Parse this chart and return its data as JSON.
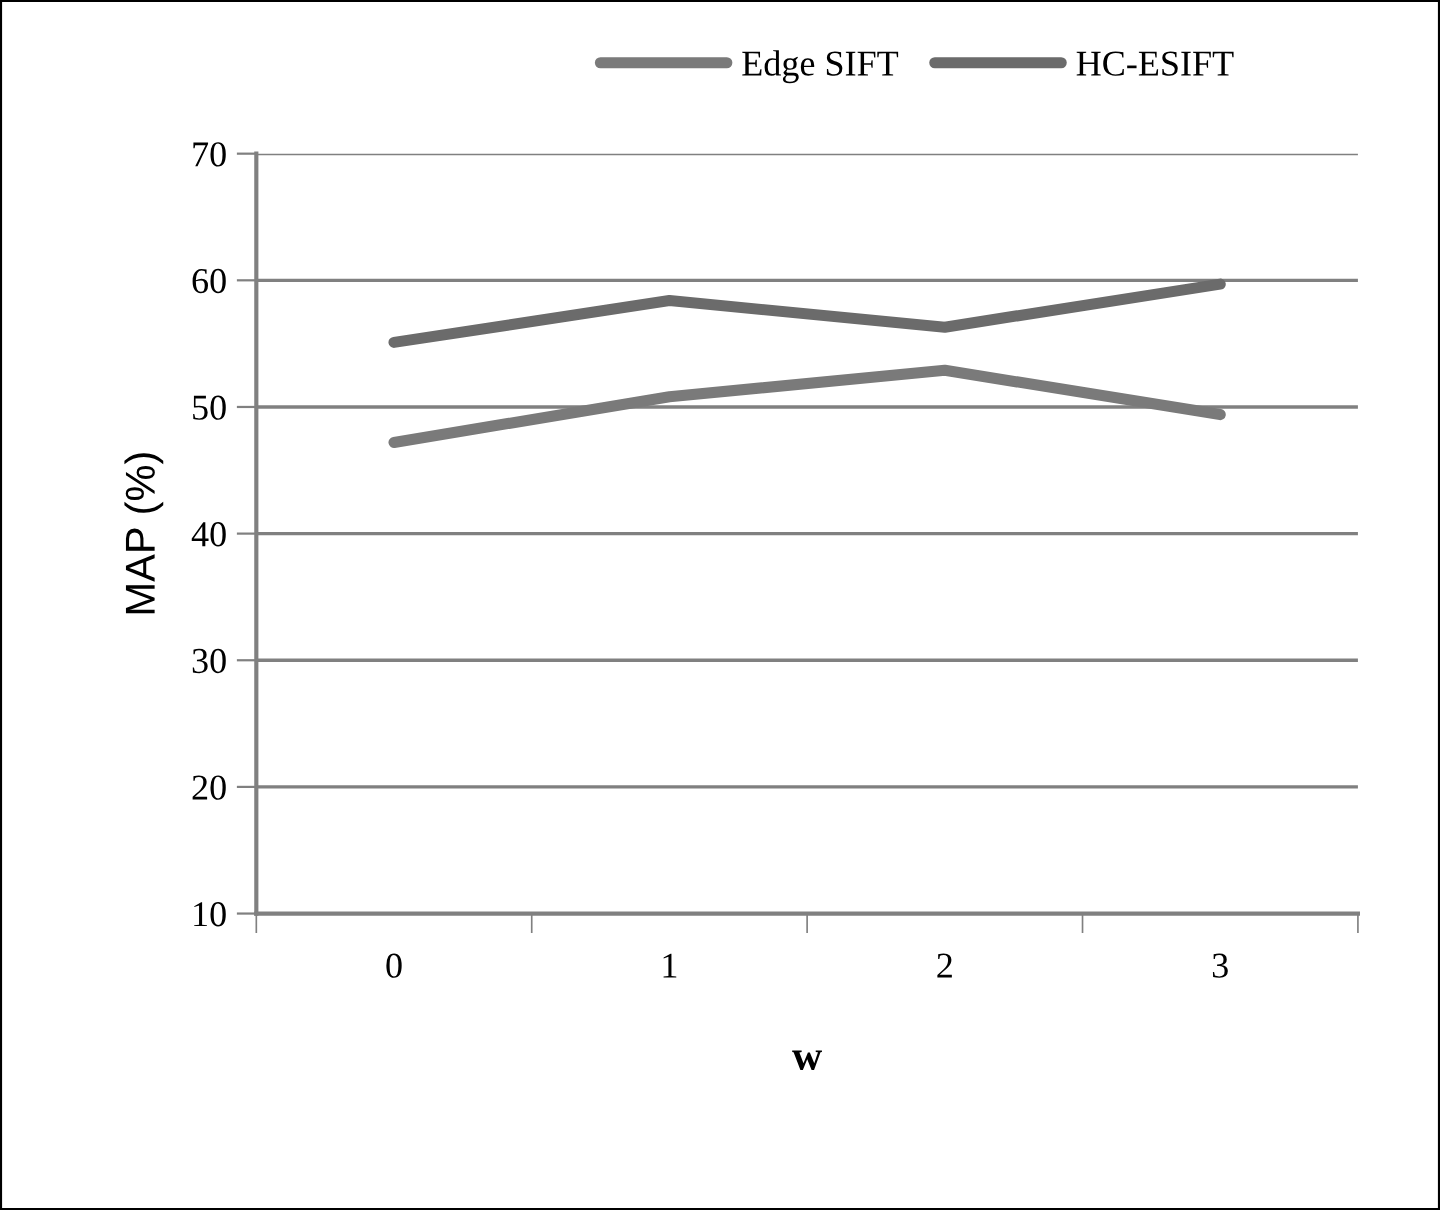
{
  "chart_data": {
    "type": "line",
    "xlabel": "w",
    "ylabel": "MAP (%)",
    "categories": [
      "0",
      "1",
      "2",
      "3"
    ],
    "series": [
      {
        "name": "Edge SIFT",
        "color": "#7a7a7a",
        "values": [
          47.2,
          50.8,
          52.9,
          49.4
        ]
      },
      {
        "name": "HC-ESIFT",
        "color": "#6b6b6b",
        "values": [
          55.1,
          58.4,
          56.3,
          59.7
        ]
      }
    ],
    "ylim": [
      10,
      70
    ],
    "yticks": [
      10,
      20,
      30,
      40,
      50,
      60,
      70
    ],
    "grid": "y",
    "legend": "top",
    "marker": "none",
    "line_style": "solid"
  }
}
